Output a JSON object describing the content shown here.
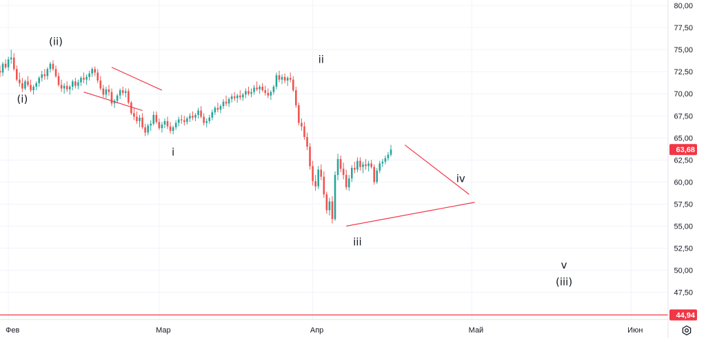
{
  "chart_data": {
    "type": "candlestick",
    "title": "",
    "xlabel": "",
    "ylabel": "",
    "ylim": [
      43.0,
      81.0
    ],
    "y_ticks": [
      "80,00",
      "77,50",
      "75,00",
      "72,50",
      "70,00",
      "67,50",
      "65,00",
      "62,50",
      "60,00",
      "57,50",
      "55,00",
      "52,50",
      "50,00",
      "47,50"
    ],
    "x_ticks": [
      "Фев",
      "Мар",
      "Апр",
      "Май",
      "Июн"
    ],
    "current_price_label": "63,68",
    "level_label": "44,94",
    "level_value": 44.94,
    "wave_labels": [
      {
        "text": "(i)",
        "date_index": 8,
        "price": 69.0
      },
      {
        "text": "(ii)",
        "date_index": 20,
        "price": 75.5
      },
      {
        "text": "i",
        "date_index": 62,
        "price": 63.0
      },
      {
        "text": "ii",
        "date_index": 115,
        "price": 73.5
      },
      {
        "text": "iii",
        "date_index": 128,
        "price": 52.8
      },
      {
        "text": "iv",
        "date_index": 165,
        "price": 60.0
      },
      {
        "text": "v",
        "date_index": 202,
        "price": 50.2
      },
      {
        "text": "(iii)",
        "date_index": 202,
        "price": 48.3
      }
    ],
    "trendlines": [
      {
        "from": [
          40,
          73.0
        ],
        "to": [
          58,
          70.4
        ]
      },
      {
        "from": [
          30,
          70.2
        ],
        "to": [
          51,
          68.1
        ]
      },
      {
        "from": [
          145,
          64.2
        ],
        "to": [
          168,
          58.6
        ]
      },
      {
        "from": [
          124,
          55.0
        ],
        "to": [
          170,
          57.7
        ]
      }
    ],
    "month_index": {
      "Фев": 3,
      "Мар": 57,
      "Апр": 112,
      "Май": 169,
      "Июн": 226
    },
    "candles": [
      [
        72.6,
        73.2,
        71.9,
        72.4
      ],
      [
        72.4,
        73.6,
        72.0,
        73.4
      ],
      [
        73.4,
        73.9,
        72.8,
        73.0
      ],
      [
        73.0,
        74.2,
        72.6,
        73.9
      ],
      [
        73.9,
        75.0,
        73.4,
        74.1
      ],
      [
        74.1,
        74.6,
        72.6,
        72.8
      ],
      [
        72.8,
        73.2,
        71.4,
        71.6
      ],
      [
        71.6,
        72.4,
        70.8,
        71.2
      ],
      [
        71.2,
        71.8,
        70.2,
        70.6
      ],
      [
        70.6,
        71.6,
        70.4,
        71.4
      ],
      [
        71.4,
        72.0,
        70.8,
        71.0
      ],
      [
        71.0,
        71.6,
        70.2,
        70.4
      ],
      [
        70.4,
        71.0,
        69.9,
        70.8
      ],
      [
        70.8,
        71.4,
        70.4,
        71.2
      ],
      [
        71.2,
        72.0,
        70.8,
        71.8
      ],
      [
        71.8,
        72.6,
        71.4,
        72.2
      ],
      [
        72.2,
        72.8,
        71.6,
        72.0
      ],
      [
        72.0,
        73.0,
        71.6,
        72.8
      ],
      [
        72.8,
        73.6,
        72.4,
        73.4
      ],
      [
        73.4,
        73.8,
        72.6,
        72.8
      ],
      [
        72.8,
        73.2,
        71.8,
        72.0
      ],
      [
        72.0,
        72.4,
        70.8,
        71.0
      ],
      [
        71.0,
        71.6,
        70.2,
        70.6
      ],
      [
        70.6,
        71.2,
        70.0,
        70.9
      ],
      [
        70.9,
        71.4,
        70.2,
        70.5
      ],
      [
        70.5,
        71.0,
        69.9,
        70.8
      ],
      [
        70.8,
        71.6,
        70.4,
        71.4
      ],
      [
        71.4,
        71.8,
        70.6,
        70.9
      ],
      [
        70.9,
        71.6,
        70.5,
        71.3
      ],
      [
        71.3,
        72.0,
        70.9,
        71.8
      ],
      [
        71.8,
        72.4,
        71.2,
        71.6
      ],
      [
        71.6,
        72.2,
        71.0,
        71.9
      ],
      [
        71.9,
        72.6,
        71.5,
        72.3
      ],
      [
        72.3,
        73.0,
        71.9,
        72.8
      ],
      [
        72.8,
        73.1,
        72.0,
        72.4
      ],
      [
        72.4,
        72.8,
        71.2,
        71.5
      ],
      [
        71.5,
        72.0,
        70.4,
        70.6
      ],
      [
        70.6,
        71.0,
        69.6,
        69.9
      ],
      [
        69.9,
        70.8,
        69.5,
        70.5
      ],
      [
        70.5,
        71.0,
        69.8,
        70.2
      ],
      [
        70.2,
        70.6,
        68.6,
        68.9
      ],
      [
        68.9,
        69.4,
        68.4,
        69.2
      ],
      [
        69.2,
        70.0,
        68.9,
        69.8
      ],
      [
        69.8,
        70.6,
        69.4,
        70.4
      ],
      [
        70.4,
        70.8,
        69.8,
        70.1
      ],
      [
        70.1,
        70.6,
        69.6,
        70.3
      ],
      [
        70.3,
        70.6,
        68.8,
        69.0
      ],
      [
        69.0,
        69.2,
        67.6,
        67.8
      ],
      [
        67.8,
        68.4,
        67.0,
        67.4
      ],
      [
        67.4,
        68.0,
        66.6,
        66.9
      ],
      [
        66.9,
        67.6,
        66.2,
        67.3
      ],
      [
        67.3,
        67.8,
        66.0,
        66.2
      ],
      [
        66.2,
        66.6,
        65.2,
        65.6
      ],
      [
        65.6,
        66.6,
        65.3,
        66.4
      ],
      [
        66.4,
        67.0,
        65.8,
        66.6
      ],
      [
        66.6,
        68.0,
        66.4,
        67.6
      ],
      [
        67.6,
        68.0,
        66.6,
        66.8
      ],
      [
        66.8,
        67.2,
        65.9,
        66.1
      ],
      [
        66.1,
        66.8,
        65.6,
        66.5
      ],
      [
        66.5,
        67.2,
        66.1,
        66.9
      ],
      [
        66.9,
        67.4,
        66.0,
        66.3
      ],
      [
        66.3,
        66.8,
        65.5,
        65.8
      ],
      [
        65.8,
        66.4,
        65.4,
        66.2
      ],
      [
        66.2,
        67.0,
        65.9,
        66.7
      ],
      [
        66.7,
        67.4,
        66.3,
        67.1
      ],
      [
        67.1,
        67.6,
        66.6,
        67.0
      ],
      [
        67.0,
        67.5,
        66.4,
        66.8
      ],
      [
        66.8,
        67.4,
        66.5,
        67.2
      ],
      [
        67.2,
        67.8,
        66.8,
        67.5
      ],
      [
        67.5,
        68.0,
        67.0,
        67.3
      ],
      [
        67.3,
        67.8,
        66.9,
        67.6
      ],
      [
        67.6,
        68.4,
        67.2,
        68.1
      ],
      [
        68.1,
        68.6,
        67.2,
        67.4
      ],
      [
        67.4,
        67.8,
        66.4,
        66.7
      ],
      [
        66.7,
        67.2,
        66.2,
        66.9
      ],
      [
        66.9,
        67.6,
        66.6,
        67.3
      ],
      [
        67.3,
        68.2,
        67.0,
        67.9
      ],
      [
        67.9,
        68.6,
        67.6,
        68.4
      ],
      [
        68.4,
        69.0,
        67.9,
        68.2
      ],
      [
        68.2,
        68.8,
        67.8,
        68.6
      ],
      [
        68.6,
        69.4,
        68.3,
        69.1
      ],
      [
        69.1,
        69.8,
        68.6,
        68.9
      ],
      [
        68.9,
        69.6,
        68.5,
        69.4
      ],
      [
        69.4,
        70.0,
        69.0,
        69.7
      ],
      [
        69.7,
        70.2,
        69.2,
        69.5
      ],
      [
        69.5,
        70.0,
        69.0,
        69.8
      ],
      [
        69.8,
        70.4,
        69.3,
        69.6
      ],
      [
        69.6,
        70.1,
        69.2,
        69.9
      ],
      [
        69.9,
        70.6,
        69.5,
        70.3
      ],
      [
        70.3,
        70.8,
        69.8,
        70.0
      ],
      [
        70.0,
        70.6,
        69.6,
        70.2
      ],
      [
        70.2,
        71.0,
        69.9,
        70.7
      ],
      [
        70.7,
        71.4,
        70.3,
        70.5
      ],
      [
        70.5,
        71.0,
        70.0,
        70.8
      ],
      [
        70.8,
        71.2,
        70.2,
        70.4
      ],
      [
        70.4,
        70.9,
        69.8,
        70.1
      ],
      [
        70.1,
        70.6,
        69.5,
        69.8
      ],
      [
        69.8,
        70.4,
        69.3,
        70.2
      ],
      [
        70.2,
        71.0,
        69.9,
        70.8
      ],
      [
        70.8,
        72.4,
        70.5,
        72.1
      ],
      [
        72.1,
        72.6,
        71.3,
        71.6
      ],
      [
        71.6,
        72.2,
        71.1,
        71.9
      ],
      [
        71.9,
        72.3,
        71.2,
        71.5
      ],
      [
        71.5,
        72.0,
        70.9,
        71.8
      ],
      [
        71.8,
        72.4,
        71.3,
        71.6
      ],
      [
        71.6,
        72.0,
        70.2,
        70.4
      ],
      [
        70.4,
        70.8,
        68.4,
        68.7
      ],
      [
        68.7,
        69.0,
        66.4,
        66.7
      ],
      [
        66.7,
        67.2,
        65.8,
        66.3
      ],
      [
        66.3,
        66.8,
        64.8,
        65.1
      ],
      [
        65.1,
        65.6,
        63.6,
        64.0
      ],
      [
        64.0,
        64.4,
        61.4,
        61.8
      ],
      [
        61.8,
        62.4,
        59.6,
        60.1
      ],
      [
        60.1,
        60.8,
        59.0,
        59.5
      ],
      [
        59.5,
        61.8,
        59.2,
        61.4
      ],
      [
        61.4,
        62.0,
        60.2,
        60.6
      ],
      [
        60.6,
        61.2,
        58.2,
        58.6
      ],
      [
        58.6,
        58.9,
        56.4,
        56.8
      ],
      [
        56.8,
        58.2,
        56.2,
        57.8
      ],
      [
        57.8,
        58.4,
        55.3,
        55.8
      ],
      [
        55.8,
        61.2,
        55.6,
        60.8
      ],
      [
        60.8,
        63.2,
        60.2,
        62.6
      ],
      [
        62.6,
        63.0,
        61.1,
        61.5
      ],
      [
        61.5,
        62.2,
        60.3,
        60.8
      ],
      [
        60.8,
        61.4,
        59.1,
        59.4
      ],
      [
        59.4,
        60.8,
        59.0,
        60.4
      ],
      [
        60.4,
        61.9,
        60.0,
        61.6
      ],
      [
        61.6,
        62.3,
        61.0,
        61.4
      ],
      [
        61.4,
        62.8,
        61.1,
        62.4
      ],
      [
        62.4,
        62.8,
        61.3,
        61.7
      ],
      [
        61.7,
        62.3,
        61.0,
        62.0
      ],
      [
        62.0,
        62.6,
        61.4,
        61.8
      ],
      [
        61.8,
        62.4,
        61.2,
        62.1
      ],
      [
        62.1,
        62.5,
        61.5,
        61.7
      ],
      [
        61.7,
        62.0,
        59.7,
        60.0
      ],
      [
        60.0,
        61.6,
        59.8,
        61.3
      ],
      [
        61.3,
        62.4,
        61.0,
        62.1
      ],
      [
        62.1,
        62.6,
        61.7,
        62.3
      ],
      [
        62.3,
        63.0,
        62.0,
        62.7
      ],
      [
        62.7,
        63.4,
        62.4,
        63.1
      ],
      [
        63.1,
        64.2,
        62.9,
        63.68
      ]
    ]
  },
  "icons": {
    "settings": "gear-icon"
  },
  "colors": {
    "up": "#26a69a",
    "down": "#ef5350",
    "trendline": "#f23645",
    "level": "#f23645",
    "price_badge": "#f23645",
    "grid": "#f0f3fa",
    "axis_text": "#131722"
  }
}
